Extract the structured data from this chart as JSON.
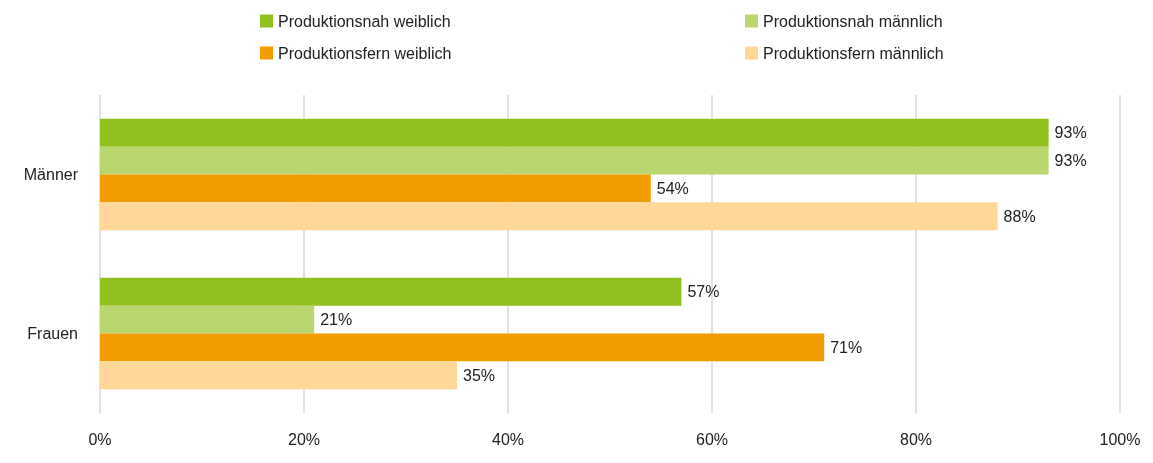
{
  "chart_data": {
    "type": "bar",
    "orientation": "horizontal",
    "categories": [
      "Männer",
      "Frauen"
    ],
    "series": [
      {
        "name": "Produktionsnah weiblich",
        "color": "#92c01f",
        "values": [
          93,
          57
        ],
        "value_labels": [
          "93%",
          "57%"
        ]
      },
      {
        "name": "Produktionsnah männlich",
        "color": "#b9d66f",
        "values": [
          93,
          21
        ],
        "value_labels": [
          "93%",
          "21%"
        ]
      },
      {
        "name": "Produktionsfern weiblich",
        "color": "#f39c00",
        "values": [
          54,
          71
        ],
        "value_labels": [
          "54%",
          "71%"
        ]
      },
      {
        "name": "Produktionsfern männlich",
        "color": "#ffd799",
        "values": [
          88,
          35
        ],
        "value_labels": [
          "88%",
          "35%"
        ]
      }
    ],
    "xlim": [
      0,
      100
    ],
    "xticks": [
      {
        "value": 0,
        "label": "0%"
      },
      {
        "value": 20,
        "label": "20%"
      },
      {
        "value": 40,
        "label": "40%"
      },
      {
        "value": 60,
        "label": "60%"
      },
      {
        "value": 80,
        "label": "80%"
      },
      {
        "value": 100,
        "label": "100%"
      }
    ],
    "grid": "x",
    "legend": "top"
  }
}
